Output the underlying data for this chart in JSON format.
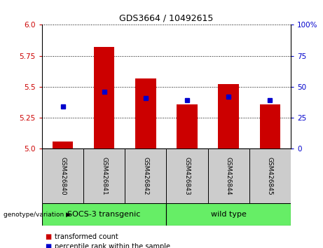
{
  "title": "GDS3664 / 10492615",
  "samples": [
    "GSM426840",
    "GSM426841",
    "GSM426842",
    "GSM426843",
    "GSM426844",
    "GSM426845"
  ],
  "red_values": [
    5.06,
    5.82,
    5.57,
    5.36,
    5.52,
    5.36
  ],
  "blue_values": [
    5.34,
    5.46,
    5.41,
    5.39,
    5.42,
    5.39
  ],
  "y_min": 5.0,
  "y_max": 6.0,
  "y_ticks_left": [
    5.0,
    5.25,
    5.5,
    5.75,
    6.0
  ],
  "y_ticks_right": [
    0,
    25,
    50,
    75,
    100
  ],
  "left_color": "#cc0000",
  "right_color": "#0000cc",
  "bar_width": 0.5,
  "groups": [
    {
      "label": "SOCS-3 transgenic",
      "start": 0,
      "end": 2,
      "color": "#66ee66"
    },
    {
      "label": "wild type",
      "start": 3,
      "end": 5,
      "color": "#66ee66"
    }
  ],
  "group_label": "genotype/variation",
  "legend_red": "transformed count",
  "legend_blue": "percentile rank within the sample",
  "tick_label_bg": "#cccccc",
  "title_fontsize": 9,
  "tick_fontsize": 7.5,
  "label_fontsize": 6.5,
  "group_fontsize": 8
}
